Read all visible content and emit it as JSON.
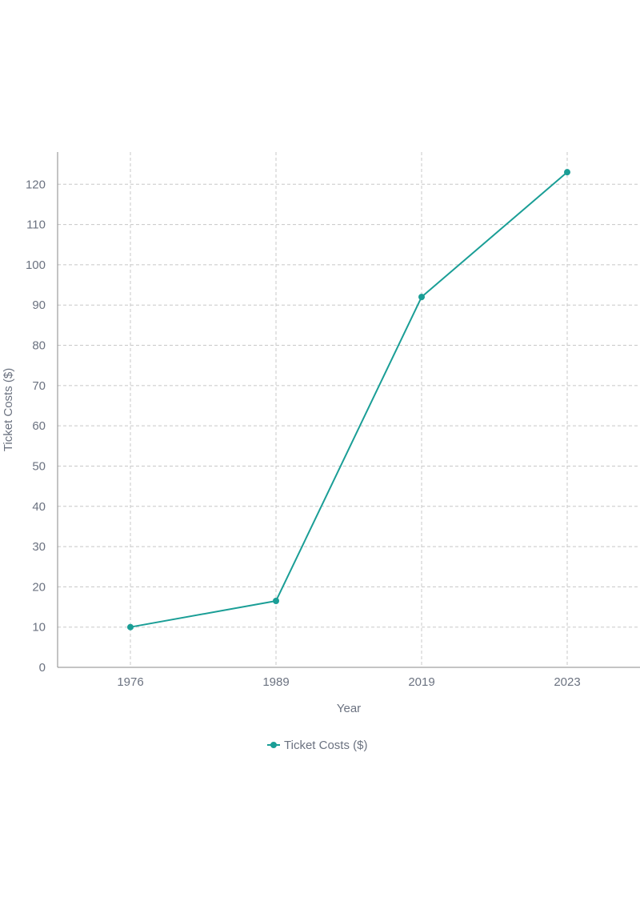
{
  "chart_data": {
    "type": "line",
    "title": "",
    "xlabel": "Year",
    "ylabel": "Ticket Costs ($)",
    "categories": [
      "1976",
      "1989",
      "2019",
      "2023"
    ],
    "series": [
      {
        "name": "Ticket Costs ($)",
        "values": [
          10,
          16.5,
          92,
          123
        ],
        "color": "#1a9e96"
      }
    ],
    "ylim": [
      0,
      128
    ],
    "yticks": [
      0,
      10,
      20,
      30,
      40,
      50,
      60,
      70,
      80,
      90,
      100,
      110,
      120
    ],
    "grid": true,
    "legend_position": "bottom-center"
  }
}
